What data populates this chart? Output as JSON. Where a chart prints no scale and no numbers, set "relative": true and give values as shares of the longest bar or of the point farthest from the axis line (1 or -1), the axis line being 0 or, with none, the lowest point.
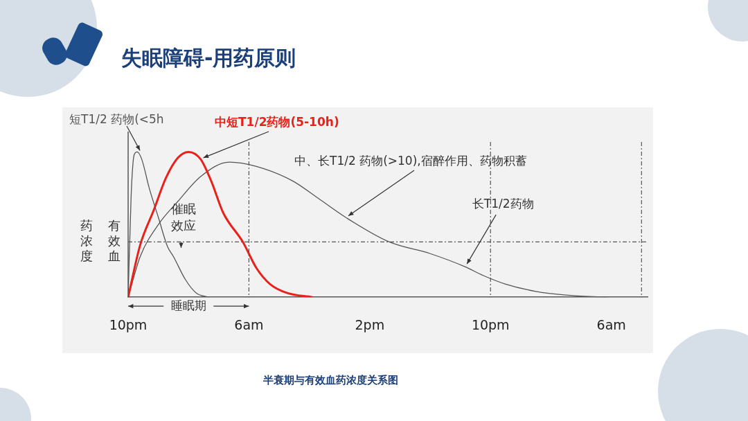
{
  "chart_data": {
    "type": "line",
    "title": "失眠障碍-用药原则",
    "relative": true,
    "xlim": [
      "--01-01T22:00",
      "--01-03T08:24"
    ],
    "xticks": [
      {
        "value": "--01-01T22:00",
        "label": "10pm"
      },
      {
        "value": "--01-02T06:00",
        "label": "6am"
      },
      {
        "value": "--01-02T14:00",
        "label": "2pm"
      },
      {
        "value": "--01-02T22:00",
        "label": "10pm"
      },
      {
        "value": "--01-03T06:00",
        "label": "6am"
      }
    ],
    "grid": false,
    "legend": false,
    "marker": "none",
    "line_style": "solid",
    "series": [
      {
        "name": "短T1/2 药物(<5h",
        "color": "#555555",
        "x": [
          "--01-01T22:00",
          "--01-01T22:12",
          "--01-01T22:24",
          "--01-01T22:36",
          "--01-01T22:54",
          "--01-01T23:24",
          "--01-02T00:00",
          "--01-02T00:36",
          "--01-02T01:00",
          "--01-02T01:48",
          "--01-02T02:30",
          "--01-02T03:18"
        ],
        "values": [
          0,
          0.7,
          0.98,
          1,
          0.95,
          0.75,
          0.55,
          0.35,
          0.28,
          0.12,
          0.03,
          0
        ]
      },
      {
        "name": "中短T1/2药物(5-10h)",
        "color": "#e8211b",
        "x": [
          "--01-01T22:00",
          "--01-01T22:48",
          "--01-01T23:42",
          "--01-02T00:30",
          "--01-02T01:18",
          "--01-02T02:00",
          "--01-02T02:48",
          "--01-02T03:30",
          "--01-02T04:18",
          "--01-02T05:36",
          "--01-02T06:30",
          "--01-02T07:24",
          "--01-02T08:30",
          "--01-02T10:12"
        ],
        "values": [
          0,
          0.36,
          0.6,
          0.82,
          0.96,
          1,
          0.95,
          0.8,
          0.58,
          0.38,
          0.2,
          0.09,
          0.03,
          0
        ]
      },
      {
        "name": "中、长T1/2 药物(>10),宿醉作用、药物积蓄",
        "color": "#555555",
        "x": [
          "--01-01T22:00",
          "--01-01T22:48",
          "--01-02T00:00",
          "--01-02T01:18",
          "--01-02T02:48",
          "--01-02T04:42",
          "--01-02T06:30",
          "--01-02T08:54",
          "--01-02T10:36",
          "--01-02T12:24",
          "--01-02T15:18",
          "--01-02T18:00",
          "--01-02T20:18",
          "--01-02T21:30",
          "--01-02T23:00",
          "--01-03T01:00",
          "--01-03T03:00",
          "--01-03T05:42"
        ],
        "values": [
          0,
          0.28,
          0.5,
          0.66,
          0.83,
          0.93,
          0.9,
          0.8,
          0.68,
          0.55,
          0.38,
          0.3,
          0.21,
          0.15,
          0.09,
          0.04,
          0.015,
          0
        ]
      }
    ],
    "ref_lines": [
      {
        "axis": "y",
        "value": 0.38,
        "label": "有效血药浓度",
        "line_style": "dashed",
        "color": "#555555"
      },
      {
        "axis": "x",
        "value": "--01-02T06:00",
        "line_style": "dashed",
        "color": "#555555"
      },
      {
        "axis": "x",
        "value": "--01-02T22:00",
        "line_style": "dashed",
        "color": "#555555"
      },
      {
        "axis": "x",
        "value": "--01-03T08:00",
        "line_style": "dashed",
        "color": "#555555"
      }
    ],
    "annotations": [
      "半衰期与有效血药浓度关系图",
      "催眠效应",
      "睡眠期",
      {
        "text": "长T1/2药物",
        "x": "--01-02T20:18",
        "y": 0.21
      }
    ]
  }
}
